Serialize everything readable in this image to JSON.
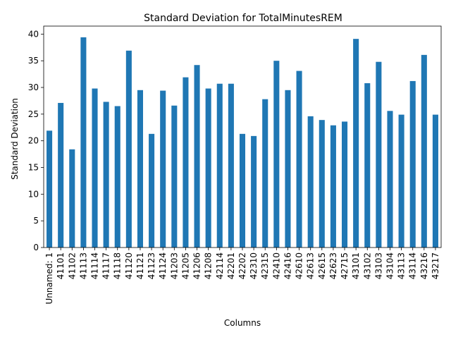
{
  "chart_data": {
    "type": "bar",
    "title": "Standard Deviation for TotalMinutesREM",
    "xlabel": "Columns",
    "ylabel": "Standard Deviation",
    "ylim": [
      0,
      41.5
    ],
    "yticks": [
      "0",
      "5",
      "10",
      "15",
      "20",
      "25",
      "30",
      "35",
      "40"
    ],
    "grid": false,
    "bar_color": "#1f77b4",
    "categories": [
      "Unnamed: 1",
      "41101",
      "41102",
      "41113",
      "41114",
      "41117",
      "41118",
      "41120",
      "41121",
      "41123",
      "41124",
      "41203",
      "41205",
      "41206",
      "41208",
      "42114",
      "42201",
      "42202",
      "42310",
      "42315",
      "42410",
      "42416",
      "42610",
      "42613",
      "42615",
      "42623",
      "42715",
      "43101",
      "43102",
      "43103",
      "43104",
      "43113",
      "43114",
      "43216",
      "43217"
    ],
    "values": [
      21.9,
      27.1,
      18.4,
      39.4,
      29.8,
      27.3,
      26.5,
      36.9,
      29.5,
      21.3,
      29.4,
      26.6,
      31.9,
      34.2,
      29.8,
      30.7,
      30.7,
      21.3,
      20.9,
      27.8,
      35.0,
      29.5,
      33.1,
      24.6,
      23.9,
      22.9,
      23.6,
      39.1,
      30.8,
      34.8,
      25.6,
      24.9,
      31.2,
      36.1,
      24.9
    ]
  }
}
